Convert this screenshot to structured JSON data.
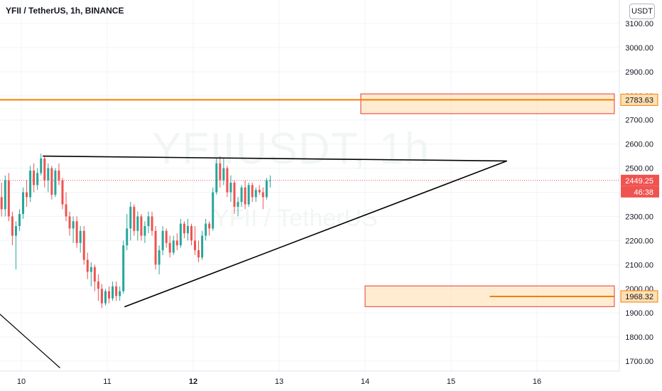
{
  "header": {
    "symbol_title": "YFII / TetherUS, 1h, BINANCE",
    "currency": "USDT"
  },
  "watermark": {
    "main": "YFIIUSDT, 1h",
    "sub": "YFII / TetherUS"
  },
  "chart_data": {
    "type": "candlestick",
    "ylim": [
      1660,
      3140
    ],
    "y_ticks": [
      "1700.00",
      "1800.00",
      "1900.00",
      "2000.00",
      "2100.00",
      "2200.00",
      "2300.00",
      "2400.00",
      "2500.00",
      "2600.00",
      "2700.00",
      "2800.00",
      "2900.00",
      "3000.00",
      "3100.00"
    ],
    "x_ticks": [
      {
        "label": "10",
        "day": 10,
        "bold": false
      },
      {
        "label": "11",
        "day": 11,
        "bold": false
      },
      {
        "label": "12",
        "day": 12,
        "bold": true
      },
      {
        "label": "13",
        "day": 13,
        "bold": false
      },
      {
        "label": "14",
        "day": 14,
        "bold": false
      },
      {
        "label": "15",
        "day": 15,
        "bold": false
      },
      {
        "label": "16",
        "day": 16,
        "bold": false
      }
    ],
    "colors": {
      "up": "#26a69a",
      "down": "#ef5350",
      "orange": "#f57c00",
      "zone_fill": "#ffe0b2",
      "zone_border": "#e53935",
      "trendline": "#000000",
      "last_price": "#ef5350"
    },
    "candles_start_day": 9.75,
    "candle_hours": 1,
    "candles": [
      [
        2380,
        2440,
        2300,
        2330
      ],
      [
        2330,
        2470,
        2300,
        2450
      ],
      [
        2450,
        2480,
        2280,
        2300
      ],
      [
        2300,
        2320,
        2180,
        2220
      ],
      [
        2220,
        2280,
        2080,
        2260
      ],
      [
        2260,
        2330,
        2240,
        2310
      ],
      [
        2310,
        2420,
        2290,
        2400
      ],
      [
        2400,
        2450,
        2340,
        2380
      ],
      [
        2380,
        2510,
        2360,
        2490
      ],
      [
        2490,
        2520,
        2400,
        2430
      ],
      [
        2430,
        2500,
        2410,
        2480
      ],
      [
        2480,
        2560,
        2470,
        2540
      ],
      [
        2540,
        2550,
        2420,
        2450
      ],
      [
        2450,
        2520,
        2400,
        2500
      ],
      [
        2500,
        2510,
        2370,
        2390
      ],
      [
        2390,
        2500,
        2380,
        2490
      ],
      [
        2490,
        2520,
        2430,
        2450
      ],
      [
        2450,
        2460,
        2330,
        2350
      ],
      [
        2350,
        2400,
        2280,
        2300
      ],
      [
        2300,
        2320,
        2220,
        2250
      ],
      [
        2250,
        2300,
        2190,
        2280
      ],
      [
        2280,
        2300,
        2170,
        2190
      ],
      [
        2190,
        2260,
        2150,
        2240
      ],
      [
        2240,
        2260,
        2100,
        2120
      ],
      [
        2120,
        2150,
        2040,
        2070
      ],
      [
        2070,
        2110,
        2010,
        2090
      ],
      [
        2090,
        2100,
        1990,
        2030
      ],
      [
        2030,
        2060,
        1950,
        2000
      ],
      [
        2000,
        2020,
        1920,
        1940
      ],
      [
        1940,
        2000,
        1930,
        1990
      ],
      [
        1990,
        2010,
        1940,
        1960
      ],
      [
        1960,
        2030,
        1950,
        2010
      ],
      [
        2010,
        2030,
        1950,
        1970
      ],
      [
        1970,
        2010,
        1950,
        1990
      ],
      [
        1990,
        2200,
        1980,
        2180
      ],
      [
        2180,
        2310,
        2160,
        2250
      ],
      [
        2250,
        2360,
        2200,
        2340
      ],
      [
        2340,
        2350,
        2220,
        2240
      ],
      [
        2240,
        2320,
        2200,
        2300
      ],
      [
        2300,
        2310,
        2200,
        2220
      ],
      [
        2220,
        2280,
        2190,
        2260
      ],
      [
        2260,
        2320,
        2230,
        2300
      ],
      [
        2300,
        2320,
        2220,
        2240
      ],
      [
        2240,
        2260,
        2080,
        2100
      ],
      [
        2100,
        2180,
        2060,
        2160
      ],
      [
        2160,
        2260,
        2140,
        2240
      ],
      [
        2240,
        2250,
        2170,
        2190
      ],
      [
        2190,
        2220,
        2130,
        2150
      ],
      [
        2150,
        2220,
        2140,
        2200
      ],
      [
        2200,
        2230,
        2160,
        2180
      ],
      [
        2180,
        2290,
        2170,
        2270
      ],
      [
        2270,
        2280,
        2210,
        2230
      ],
      [
        2230,
        2290,
        2200,
        2260
      ],
      [
        2260,
        2270,
        2180,
        2200
      ],
      [
        2200,
        2260,
        2140,
        2160
      ],
      [
        2160,
        2200,
        2110,
        2130
      ],
      [
        2130,
        2240,
        2120,
        2220
      ],
      [
        2220,
        2290,
        2200,
        2270
      ],
      [
        2270,
        2280,
        2220,
        2250
      ],
      [
        2250,
        2420,
        2240,
        2400
      ],
      [
        2400,
        2540,
        2390,
        2520
      ],
      [
        2520,
        2550,
        2420,
        2450
      ],
      [
        2450,
        2540,
        2430,
        2500
      ],
      [
        2500,
        2510,
        2380,
        2400
      ],
      [
        2400,
        2470,
        2360,
        2440
      ],
      [
        2440,
        2450,
        2310,
        2340
      ],
      [
        2340,
        2380,
        2300,
        2360
      ],
      [
        2360,
        2430,
        2340,
        2420
      ],
      [
        2420,
        2450,
        2330,
        2350
      ],
      [
        2350,
        2440,
        2340,
        2430
      ],
      [
        2430,
        2440,
        2360,
        2380
      ],
      [
        2380,
        2420,
        2360,
        2410
      ],
      [
        2410,
        2430,
        2390,
        2400
      ],
      [
        2400,
        2420,
        2330,
        2380
      ],
      [
        2380,
        2460,
        2370,
        2450
      ],
      [
        2450,
        2470,
        2420,
        2450
      ]
    ],
    "horizontal_lines": [
      {
        "price": 2783.63,
        "label": "2783.63",
        "x_from_day": 9.75,
        "x_to_day": 16.9
      },
      {
        "price": 1968.32,
        "label": "1968.32",
        "x_from_day": 15.45,
        "x_to_day": 16.9
      }
    ],
    "zones": [
      {
        "x_from_day": 13.95,
        "x_to_day": 16.9,
        "y_top": 2808,
        "y_bottom": 2726
      },
      {
        "x_from_day": 14.0,
        "x_to_day": 16.9,
        "y_top": 2012,
        "y_bottom": 1926
      }
    ],
    "trendlines": [
      {
        "from": [
          10.25,
          2550
        ],
        "to": [
          15.65,
          2530
        ],
        "width": 1.6
      },
      {
        "from": [
          11.2,
          1925
        ],
        "to": [
          15.65,
          2530
        ],
        "width": 1.6
      },
      {
        "from": [
          9.75,
          1895
        ],
        "to": [
          10.45,
          1672
        ],
        "width": 1.2
      }
    ],
    "last_price": {
      "price": 2449.25,
      "label": "2449.25",
      "countdown": "46:38"
    }
  }
}
